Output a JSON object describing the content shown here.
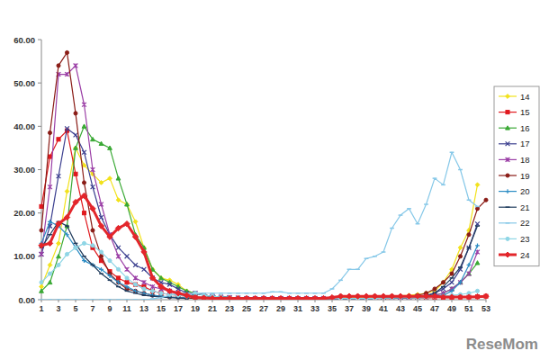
{
  "chart_data": {
    "type": "line",
    "annotations": [
      "ReseMom"
    ],
    "x": [
      1,
      2,
      3,
      4,
      5,
      6,
      7,
      8,
      9,
      10,
      11,
      12,
      13,
      14,
      15,
      16,
      17,
      18,
      19,
      20,
      21,
      22,
      23,
      24,
      25,
      26,
      27,
      28,
      29,
      30,
      31,
      32,
      33,
      34,
      35,
      36,
      37,
      38,
      39,
      40,
      41,
      42,
      43,
      44,
      45,
      46,
      47,
      48,
      49,
      50,
      51,
      52,
      53
    ],
    "xlim": [
      1,
      53
    ],
    "xticks": [
      1,
      3,
      5,
      7,
      9,
      11,
      13,
      15,
      17,
      19,
      21,
      23,
      25,
      27,
      29,
      31,
      33,
      35,
      37,
      39,
      41,
      43,
      45,
      47,
      49,
      51,
      53
    ],
    "ylim": [
      0,
      60
    ],
    "yticks": [
      {
        "value": 0,
        "label": "0.00"
      },
      {
        "value": 10,
        "label": "10.00"
      },
      {
        "value": 20,
        "label": "20.00"
      },
      {
        "value": 30,
        "label": "30.00"
      },
      {
        "value": 40,
        "label": "40.00"
      },
      {
        "value": 50,
        "label": "50.00"
      },
      {
        "value": 60,
        "label": "60.00"
      }
    ],
    "grid": false,
    "legend": "right",
    "series": [
      {
        "name": "14",
        "color": "#f2e21b",
        "marker": "diamond",
        "line_style": "solid",
        "values": [
          3,
          8,
          13,
          25,
          35,
          31,
          29,
          27,
          28,
          23,
          22,
          18,
          12,
          7,
          5,
          4.5,
          3.5,
          2,
          1.5,
          1,
          0.8,
          0.6,
          0.5,
          0.4,
          0.3,
          0.3,
          0.3,
          0.3,
          0.3,
          0.3,
          0.3,
          0.3,
          0.3,
          0.3,
          0.4,
          0.4,
          0.5,
          0.5,
          0.5,
          0.6,
          0.7,
          0.8,
          0.9,
          1,
          1.2,
          1.5,
          2,
          4,
          7,
          12,
          16,
          26.5,
          null
        ]
      },
      {
        "name": "15",
        "color": "#e0191e",
        "marker": "square",
        "line_style": "solid",
        "values": [
          21.5,
          33,
          37,
          39,
          29,
          20,
          12,
          9,
          6.5,
          5,
          4,
          3.5,
          3,
          2,
          1.5,
          1.2,
          1,
          0.8,
          0.6,
          0.5,
          0.4,
          0.3,
          0.3,
          0.2,
          0.2,
          0.2,
          0.2,
          0.2,
          0.2,
          0.2,
          0.2,
          0.2,
          0.2,
          0.2,
          0.2,
          0.2,
          0.3,
          0.3,
          0.3,
          0.3,
          0.3,
          0.3,
          0.4,
          0.4,
          0.4,
          0.4,
          0.5,
          0.5,
          0.5,
          0.6,
          0.6,
          0.7,
          0.8
        ]
      },
      {
        "name": "16",
        "color": "#3aa935",
        "marker": "triangle",
        "line_style": "solid",
        "values": [
          2,
          4,
          10,
          17,
          35,
          40,
          37,
          36,
          35,
          28,
          22,
          15,
          12,
          7,
          5,
          4,
          3,
          2,
          1.5,
          1,
          0.8,
          0.6,
          0.5,
          0.4,
          0.3,
          0.3,
          0.3,
          0.3,
          0.3,
          0.3,
          0.3,
          0.3,
          0.3,
          0.3,
          0.3,
          0.3,
          0.3,
          0.3,
          0.3,
          0.3,
          0.4,
          0.4,
          0.5,
          0.5,
          0.6,
          0.8,
          1,
          1.5,
          2.5,
          4,
          6,
          8.5,
          null
        ]
      },
      {
        "name": "17",
        "color": "#3b3f8f",
        "marker": "x",
        "line_style": "solid",
        "values": [
          10.5,
          17,
          28.5,
          39.5,
          38,
          34,
          26,
          19,
          15,
          12,
          10,
          8,
          7,
          5,
          4,
          3.5,
          2.5,
          1.5,
          1.5,
          1,
          0.8,
          0.6,
          0.5,
          0.4,
          0.3,
          0.3,
          0.3,
          0.3,
          0.3,
          0.3,
          0.3,
          0.3,
          0.3,
          0.3,
          0.3,
          0.3,
          0.3,
          0.3,
          0.3,
          0.3,
          0.4,
          0.4,
          0.5,
          0.5,
          0.8,
          1,
          1.5,
          2.5,
          4,
          7,
          12,
          17.5,
          null
        ]
      },
      {
        "name": "18",
        "color": "#9b3fa6",
        "marker": "star",
        "line_style": "solid",
        "values": [
          10.5,
          26,
          52,
          52,
          54,
          45,
          30,
          22,
          15,
          10,
          7,
          5,
          4,
          3,
          2.5,
          2,
          1.5,
          1,
          1.5,
          1,
          0.8,
          0.6,
          0.5,
          0.4,
          0.3,
          0.3,
          0.3,
          0.3,
          0.3,
          0.3,
          0.3,
          0.3,
          0.3,
          0.3,
          0.3,
          0.3,
          0.3,
          0.3,
          0.3,
          0.3,
          0.4,
          0.4,
          0.5,
          0.5,
          0.6,
          0.8,
          1,
          1.5,
          2.5,
          4,
          6,
          11,
          null
        ]
      },
      {
        "name": "19",
        "color": "#8a1c16",
        "marker": "circle",
        "line_style": "solid",
        "values": [
          16,
          38.5,
          54,
          57,
          43,
          27,
          16,
          10,
          6,
          4,
          2.5,
          2,
          1.5,
          1,
          0.8,
          0.6,
          0.5,
          0.4,
          0.3,
          0.3,
          0.3,
          0.3,
          0.3,
          0.3,
          0.3,
          0.3,
          0.3,
          0.3,
          0.3,
          0.3,
          0.3,
          0.3,
          0.3,
          0.3,
          0.3,
          0.8,
          0.8,
          0.8,
          0.8,
          0.8,
          0.8,
          0.8,
          0.8,
          0.8,
          1,
          1.5,
          2.5,
          4,
          6,
          10,
          15,
          21,
          23
        ]
      },
      {
        "name": "20",
        "color": "#2b8cc4",
        "marker": "plus",
        "line_style": "solid",
        "values": [
          13,
          18,
          17,
          15,
          12,
          9,
          8,
          7,
          5.5,
          4,
          3,
          2,
          1.5,
          1,
          0.8,
          0.6,
          0.5,
          0.4,
          1.5,
          1,
          0.8,
          0.6,
          0.5,
          0.4,
          0.3,
          0.3,
          0.3,
          0.3,
          0.3,
          0.3,
          0.3,
          0.3,
          0.3,
          0.3,
          0.3,
          0.3,
          0.3,
          0.3,
          0.3,
          0.3,
          0.4,
          0.4,
          0.5,
          0.5,
          0.5,
          0.6,
          0.8,
          1,
          2,
          4,
          8,
          12.5,
          null
        ]
      },
      {
        "name": "21",
        "color": "#1f3b5c",
        "marker": "dash",
        "line_style": "solid",
        "values": [
          12,
          15,
          18,
          17,
          13,
          10,
          8,
          6,
          4.5,
          3,
          2,
          1.5,
          1,
          0.8,
          0.6,
          0.5,
          0.4,
          0.3,
          1.5,
          1,
          0.8,
          0.6,
          0.5,
          0.4,
          0.3,
          0.3,
          0.3,
          0.3,
          0.3,
          0.3,
          0.3,
          0.3,
          0.3,
          0.3,
          0.3,
          0.3,
          0.3,
          0.3,
          0.3,
          0.3,
          0.4,
          0.4,
          0.5,
          0.5,
          0.6,
          0.8,
          1.5,
          3,
          5,
          7.5,
          12,
          17,
          null
        ]
      },
      {
        "name": "22",
        "color": "#86c8e8",
        "marker": "dash",
        "line_style": "solid",
        "values": [
          0,
          0,
          0,
          0,
          0,
          0,
          0,
          0,
          0,
          0,
          0,
          0,
          0,
          0.2,
          0.5,
          1,
          1.5,
          1.5,
          1.5,
          1.5,
          1.5,
          1.5,
          1.5,
          1.5,
          1.5,
          1.5,
          1.5,
          1.8,
          1.8,
          1.5,
          1.5,
          1.5,
          1.5,
          1.5,
          2.5,
          4.5,
          7,
          7,
          9.5,
          10,
          11,
          16.5,
          19.5,
          21,
          17.5,
          22,
          28,
          26.5,
          34,
          30,
          23,
          21.5,
          null
        ]
      },
      {
        "name": "23",
        "color": "#8fd6e6",
        "marker": "circle",
        "line_style": "solid",
        "values": [
          4,
          6,
          8,
          10.5,
          12,
          13,
          12.5,
          11,
          9,
          7,
          5,
          3.5,
          2.5,
          2,
          1.5,
          1.2,
          1,
          0.8,
          1.5,
          1,
          0.8,
          0.6,
          0.5,
          0.4,
          0.3,
          0.3,
          0.3,
          0.3,
          0.3,
          0.3,
          0.3,
          0.3,
          0.3,
          0.3,
          0.3,
          0.3,
          0.3,
          0.3,
          0.3,
          0.3,
          0.4,
          0.4,
          0.5,
          0.5,
          0.4,
          0.5,
          0.6,
          0.8,
          1,
          1.2,
          1.5,
          2,
          null
        ]
      },
      {
        "name": "24",
        "color": "#e3262b",
        "marker": "diamond",
        "line_style": "solid",
        "values": [
          12.5,
          13,
          17.5,
          19,
          22.5,
          24,
          21,
          17,
          14.5,
          16.5,
          17.5,
          14.5,
          11,
          5,
          3,
          2,
          1.5,
          1,
          0.5,
          0.4,
          0.3,
          0.3,
          0.3,
          0.3,
          0.3,
          0.3,
          0.3,
          0.3,
          0.3,
          0.3,
          0.3,
          0.3,
          0.3,
          0.3,
          0.5,
          0.8,
          0.8,
          0.8,
          0.8,
          0.8,
          0.8,
          0.8,
          0.8,
          0.8,
          0.8,
          0.8,
          0.8,
          0.6,
          0.6,
          0.6,
          0.6,
          0.7,
          0.8
        ]
      }
    ]
  }
}
